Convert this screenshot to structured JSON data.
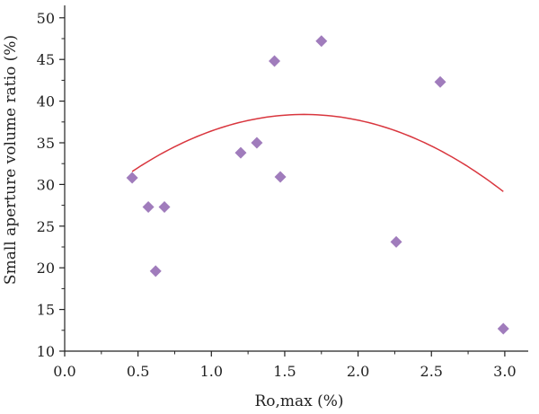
{
  "chart_data": {
    "type": "scatter",
    "title": "",
    "xlabel": "Ro,max (%)",
    "ylabel": "Small aperture volume ratio (%)",
    "xlim": [
      0,
      3.2
    ],
    "ylim": [
      10,
      52
    ],
    "xticks": [
      0,
      0.5,
      1.0,
      1.5,
      2.0,
      2.5,
      3.0
    ],
    "xtick_labels": [
      "0.0",
      "0.5",
      "1.0",
      "1.5",
      "2.0",
      "2.5",
      "3.0"
    ],
    "yticks": [
      10,
      15,
      20,
      25,
      30,
      35,
      40,
      45,
      50
    ],
    "ytick_labels": [
      "10",
      "15",
      "20",
      "25",
      "30",
      "35",
      "40",
      "45",
      "50"
    ],
    "grid": false,
    "points": [
      {
        "x": 0.46,
        "y": 30.8
      },
      {
        "x": 0.57,
        "y": 27.3
      },
      {
        "x": 0.62,
        "y": 19.6
      },
      {
        "x": 0.68,
        "y": 27.3
      },
      {
        "x": 1.2,
        "y": 33.8
      },
      {
        "x": 1.31,
        "y": 35.0
      },
      {
        "x": 1.43,
        "y": 44.8
      },
      {
        "x": 1.47,
        "y": 30.9
      },
      {
        "x": 1.75,
        "y": 47.2
      },
      {
        "x": 2.26,
        "y": 23.1
      },
      {
        "x": 2.56,
        "y": 42.3
      },
      {
        "x": 2.99,
        "y": 12.7
      }
    ],
    "fit_curve": {
      "type": "quadratic",
      "vertex_x": 1.63,
      "vertex_y": 38.4,
      "a": -5.0,
      "x_range": [
        0.46,
        2.99
      ]
    },
    "marker_color": "#a07cbc",
    "curve_color": "#d9363e",
    "axis_color": "#222222"
  }
}
